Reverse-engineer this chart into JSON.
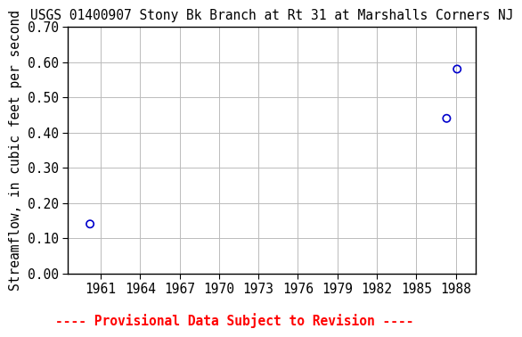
{
  "title": "USGS 01400907 Stony Bk Branch at Rt 31 at Marshalls Corners NJ",
  "ylabel": "Streamflow, in cubic feet per second",
  "footnote": "---- Provisional Data Subject to Revision ----",
  "x_data": [
    1960.2,
    1987.3,
    1988.1
  ],
  "y_data": [
    0.14,
    0.44,
    0.58
  ],
  "xlim": [
    1958.5,
    1989.5
  ],
  "ylim": [
    0.0,
    0.7
  ],
  "xticks": [
    1961,
    1964,
    1967,
    1970,
    1973,
    1976,
    1979,
    1982,
    1985,
    1988
  ],
  "yticks": [
    0.0,
    0.1,
    0.2,
    0.3,
    0.4,
    0.5,
    0.6,
    0.7
  ],
  "marker_color": "#0000cc",
  "marker_size": 6,
  "grid_color": "#bbbbbb",
  "bg_color": "#ffffff",
  "footnote_color": "#ff0000",
  "title_fontsize": 10.5,
  "axis_label_fontsize": 10.5,
  "tick_fontsize": 10.5,
  "footnote_fontsize": 10.5
}
